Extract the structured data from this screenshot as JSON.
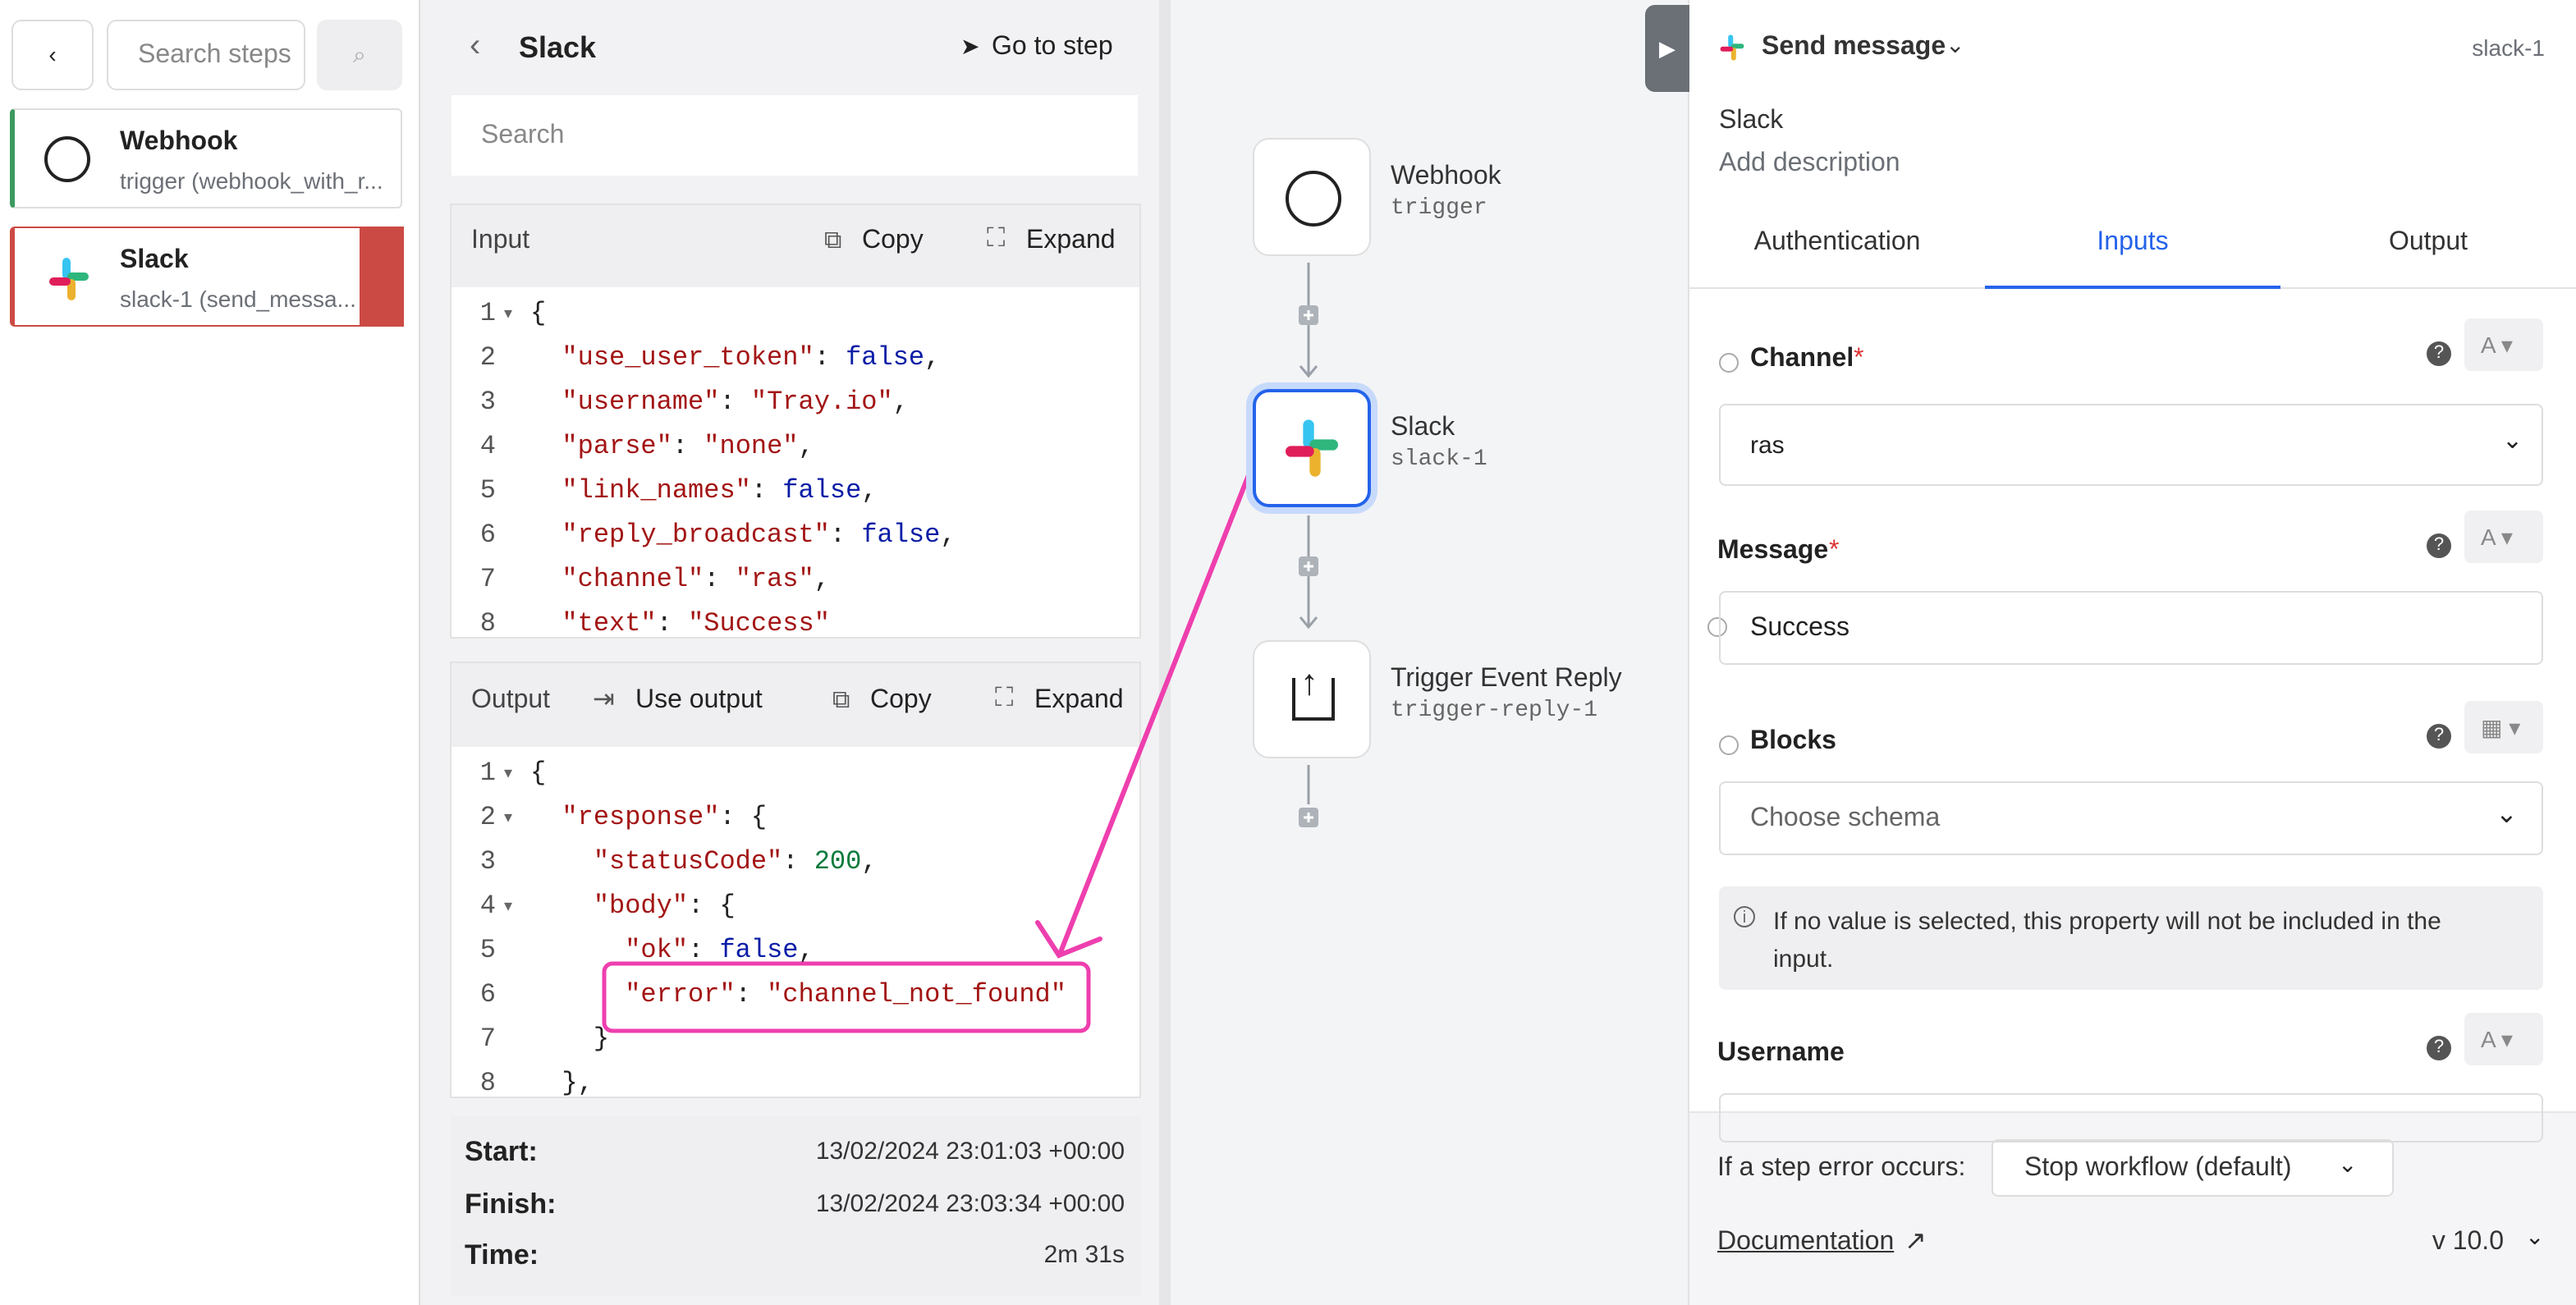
{
  "sidebar": {
    "search_placeholder": "Search steps",
    "steps": [
      {
        "title": "Webhook",
        "subtitle": "trigger (webhook_with_r..."
      },
      {
        "title": "Slack",
        "subtitle": "slack-1 (send_messa..."
      }
    ]
  },
  "debug_panel": {
    "title": "Slack",
    "go_to_step": "Go to step",
    "search_placeholder": "Search",
    "input": {
      "label": "Input",
      "copy": "Copy",
      "expand": "Expand",
      "lines": [
        {
          "n": 1,
          "code": "{"
        },
        {
          "n": 2,
          "code": "  \"use_user_token\": false,"
        },
        {
          "n": 3,
          "code": "  \"username\": \"Tray.io\","
        },
        {
          "n": 4,
          "code": "  \"parse\": \"none\","
        },
        {
          "n": 5,
          "code": "  \"link_names\": false,"
        },
        {
          "n": 6,
          "code": "  \"reply_broadcast\": false,"
        },
        {
          "n": 7,
          "code": "  \"channel\": \"ras\","
        },
        {
          "n": 8,
          "code": "  \"text\": \"Success\""
        }
      ]
    },
    "output": {
      "label": "Output",
      "use_output": "Use output",
      "copy": "Copy",
      "expand": "Expand",
      "lines": [
        {
          "n": 1,
          "code": "{"
        },
        {
          "n": 2,
          "code": "  \"response\": {"
        },
        {
          "n": 3,
          "code": "    \"statusCode\": 200,"
        },
        {
          "n": 4,
          "code": "    \"body\": {"
        },
        {
          "n": 5,
          "code": "      \"ok\": false,"
        },
        {
          "n": 6,
          "code": "      \"error\": \"channel_not_found\""
        },
        {
          "n": 7,
          "code": "    }"
        },
        {
          "n": 8,
          "code": "  },"
        }
      ]
    },
    "timing": [
      {
        "label": "Start:",
        "value": "13/02/2024 23:01:03 +00:00"
      },
      {
        "label": "Finish:",
        "value": "13/02/2024 23:03:34 +00:00"
      },
      {
        "label": "Time:",
        "value": "2m 31s"
      }
    ]
  },
  "canvas": {
    "nodes": [
      {
        "title": "Webhook",
        "subtitle": "trigger"
      },
      {
        "title": "Slack",
        "subtitle": "slack-1"
      },
      {
        "title": "Trigger Event Reply",
        "subtitle": "trigger-reply-1"
      }
    ]
  },
  "properties": {
    "operation": "Send message",
    "step_id": "slack-1",
    "name": "Slack",
    "description": "Add description",
    "tabs": [
      "Authentication",
      "Inputs",
      "Output"
    ],
    "fields": [
      {
        "label": "Channel",
        "required": "*",
        "value": "ras"
      },
      {
        "label": "Message",
        "required": "*",
        "value": "Success"
      },
      {
        "label": "Blocks",
        "placeholder": "Choose schema",
        "note": "If no value is selected, this property will not be included in the input."
      },
      {
        "label": "Username"
      }
    ],
    "footer": {
      "error_label": "If a step error occurs:",
      "error_option": "Stop workflow (default)",
      "documentation": "Documentation",
      "version": "v 10.0"
    }
  }
}
